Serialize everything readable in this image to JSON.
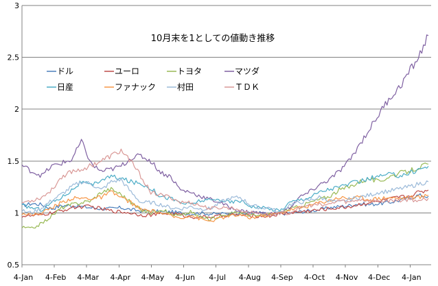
{
  "chart_data": {
    "type": "line",
    "title": "10月末を1としての値動き推移",
    "xlabel": "",
    "ylabel": "",
    "ylim": [
      0.5,
      3
    ],
    "yticks": [
      "0.5",
      "1",
      "1.5",
      "2",
      "2.5",
      "3"
    ],
    "xticks": [
      "4-Jan",
      "4-Feb",
      "4-Mar",
      "4-Apr",
      "4-May",
      "4-Jun",
      "4-Jul",
      "4-Aug",
      "4-Sep",
      "4-Oct",
      "4-Nov",
      "4-Dec",
      "4-Jan"
    ],
    "grid": true,
    "legend_position": "top-left",
    "series": [
      {
        "name": "ドル",
        "color": "#4a7ebb",
        "values": [
          1.07,
          1.09,
          1.08,
          1.04,
          1.07,
          1.07,
          1.06,
          1.05,
          1.04,
          1.04,
          1.05,
          1.03,
          1.02,
          1.02,
          1.01,
          1.01,
          1.0,
          0.99,
          1.0,
          0.99,
          0.99,
          1.0,
          0.99,
          1.0,
          1.0,
          0.98,
          0.99,
          1.0,
          1.01,
          1.02,
          1.03,
          1.05,
          1.06,
          1.07,
          1.09,
          1.08,
          1.09,
          1.1,
          1.12,
          1.14,
          1.17,
          1.16
        ]
      },
      {
        "name": "ユーロ",
        "color": "#be4b48",
        "values": [
          0.97,
          0.97,
          0.98,
          1.0,
          1.02,
          1.05,
          1.06,
          1.06,
          1.04,
          1.02,
          1.01,
          1.0,
          0.98,
          0.98,
          0.99,
          1.0,
          0.98,
          0.96,
          0.96,
          0.96,
          0.97,
          0.98,
          0.98,
          0.97,
          0.97,
          0.97,
          0.99,
          1.0,
          1.01,
          1.02,
          1.03,
          1.04,
          1.05,
          1.06,
          1.08,
          1.1,
          1.11,
          1.13,
          1.15,
          1.16,
          1.2,
          1.22
        ]
      },
      {
        "name": "トヨタ",
        "color": "#98b954",
        "values": [
          0.86,
          0.85,
          0.9,
          0.97,
          1.05,
          1.08,
          1.1,
          1.12,
          1.2,
          1.23,
          1.18,
          1.1,
          1.03,
          1.0,
          1.04,
          0.99,
          0.97,
          1.01,
          0.96,
          0.94,
          0.97,
          0.99,
          1.01,
          0.98,
          0.97,
          0.99,
          1.0,
          1.04,
          1.06,
          1.1,
          1.13,
          1.16,
          1.22,
          1.25,
          1.3,
          1.33,
          1.3,
          1.35,
          1.38,
          1.4,
          1.44,
          1.47
        ]
      },
      {
        "name": "マツダ",
        "color": "#7e5fa1",
        "values": [
          1.46,
          1.4,
          1.36,
          1.45,
          1.48,
          1.51,
          1.69,
          1.47,
          1.4,
          1.42,
          1.45,
          1.53,
          1.55,
          1.5,
          1.39,
          1.35,
          1.22,
          1.2,
          1.16,
          1.13,
          1.1,
          1.05,
          1.02,
          1.01,
          1.0,
          0.99,
          1.0,
          1.05,
          1.15,
          1.2,
          1.27,
          1.32,
          1.4,
          1.5,
          1.65,
          1.8,
          1.95,
          2.1,
          2.2,
          2.35,
          2.5,
          2.71
        ]
      },
      {
        "name": "日産",
        "color": "#4bacc6",
        "values": [
          1.07,
          1.05,
          1.03,
          1.1,
          1.15,
          1.22,
          1.3,
          1.26,
          1.32,
          1.35,
          1.33,
          1.3,
          1.28,
          1.24,
          1.16,
          1.14,
          1.1,
          1.08,
          1.12,
          1.12,
          1.13,
          1.1,
          1.12,
          1.07,
          1.05,
          1.04,
          1.02,
          1.1,
          1.13,
          1.15,
          1.2,
          1.23,
          1.25,
          1.28,
          1.3,
          1.33,
          1.35,
          1.37,
          1.36,
          1.38,
          1.42,
          1.45
        ]
      },
      {
        "name": "ファナック",
        "color": "#f79646",
        "values": [
          1.0,
          0.98,
          1.0,
          1.05,
          1.1,
          1.14,
          1.14,
          1.14,
          1.15,
          1.2,
          1.15,
          1.1,
          1.03,
          1.02,
          1.0,
          0.97,
          0.95,
          0.98,
          0.94,
          0.92,
          0.95,
          0.97,
          0.98,
          0.95,
          0.97,
          0.98,
          1.0,
          1.03,
          1.05,
          1.07,
          1.1,
          1.12,
          1.15,
          1.14,
          1.15,
          1.13,
          1.14,
          1.15,
          1.14,
          1.15,
          1.15,
          1.17
        ]
      },
      {
        "name": "村田",
        "color": "#9bbad9",
        "values": [
          1.02,
          1.0,
          1.05,
          1.12,
          1.18,
          1.25,
          1.3,
          1.28,
          1.22,
          1.3,
          1.32,
          1.2,
          1.1,
          1.1,
          1.08,
          1.05,
          1.04,
          1.06,
          1.04,
          1.04,
          1.1,
          1.14,
          1.15,
          1.08,
          1.05,
          1.05,
          1.0,
          1.08,
          1.1,
          1.12,
          1.15,
          1.12,
          1.1,
          1.13,
          1.15,
          1.17,
          1.2,
          1.21,
          1.23,
          1.25,
          1.28,
          1.3
        ]
      },
      {
        "name": "ＴＤＫ",
        "color": "#d99795",
        "values": [
          1.1,
          1.12,
          1.15,
          1.22,
          1.35,
          1.4,
          1.42,
          1.46,
          1.5,
          1.55,
          1.6,
          1.5,
          1.35,
          1.2,
          1.17,
          1.15,
          1.1,
          1.1,
          1.07,
          1.04,
          1.05,
          1.05,
          1.03,
          1.0,
          1.0,
          0.98,
          1.0,
          1.0,
          1.05,
          1.07,
          1.08,
          1.08,
          1.12,
          1.1,
          1.13,
          1.12,
          1.11,
          1.12,
          1.12,
          1.13,
          1.12,
          1.14
        ]
      }
    ]
  }
}
